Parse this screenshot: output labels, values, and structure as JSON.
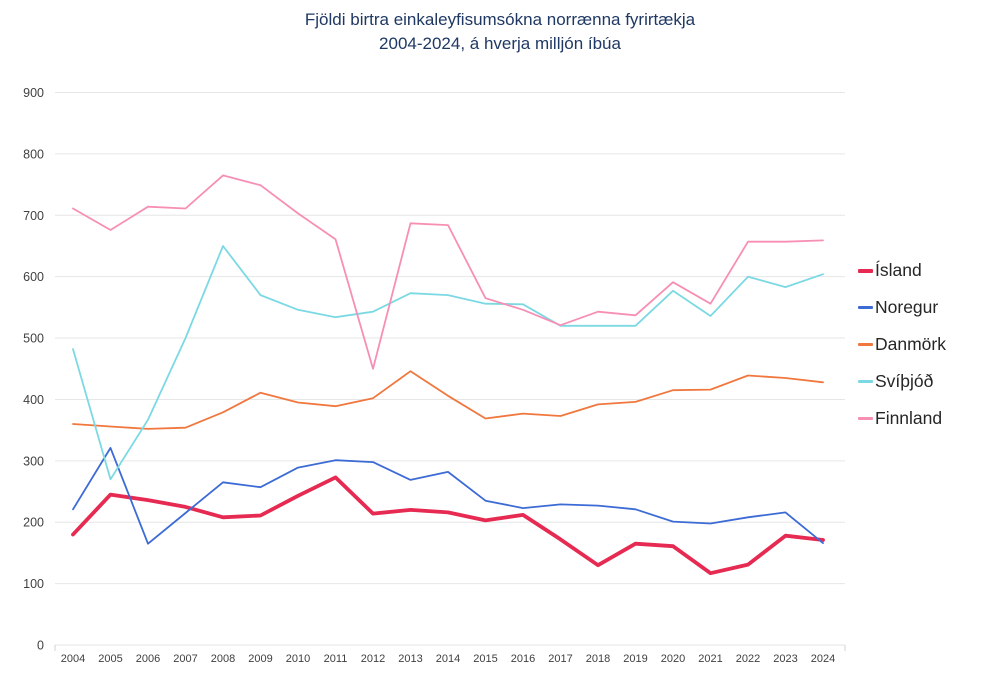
{
  "title": {
    "line1": "Fjöldi birtra einkaleyfisumsókna norrænna fyrirtækja",
    "line2": "2004-2024, á hverja milljón íbúa"
  },
  "chart_data": {
    "type": "line",
    "x": [
      2004,
      2005,
      2006,
      2007,
      2008,
      2009,
      2010,
      2011,
      2012,
      2013,
      2014,
      2015,
      2016,
      2017,
      2018,
      2019,
      2020,
      2021,
      2022,
      2023,
      2024
    ],
    "series": [
      {
        "id": "island",
        "name": "Ísland",
        "color": "#E62A52",
        "line_width": 3.8,
        "values": [
          180,
          245,
          236,
          225,
          208,
          211,
          243,
          273,
          214,
          220,
          216,
          203,
          212,
          172,
          130,
          165,
          161,
          117,
          131,
          178,
          171
        ]
      },
      {
        "id": "noregur",
        "name": "Noregur",
        "color": "#3D6BD5",
        "line_width": 1.8,
        "values": [
          221,
          321,
          165,
          215,
          265,
          257,
          289,
          301,
          298,
          269,
          282,
          235,
          223,
          229,
          227,
          221,
          201,
          198,
          208,
          216,
          166
        ]
      },
      {
        "id": "danmork",
        "name": "Danmörk",
        "color": "#F0773E",
        "line_width": 1.8,
        "values": [
          360,
          356,
          352,
          354,
          379,
          411,
          395,
          389,
          402,
          446,
          406,
          369,
          377,
          373,
          392,
          396,
          415,
          416,
          439,
          435,
          428
        ]
      },
      {
        "id": "svithjod",
        "name": "Svíþjóð",
        "color": "#7CD9E4",
        "line_width": 1.8,
        "values": [
          482,
          270,
          367,
          500,
          650,
          570,
          546,
          534,
          543,
          573,
          570,
          556,
          555,
          520,
          520,
          520,
          577,
          536,
          600,
          583,
          604
        ]
      },
      {
        "id": "finnland",
        "name": "Finnland",
        "color": "#F78FB5",
        "line_width": 1.8,
        "values": [
          711,
          676,
          714,
          711,
          765,
          749,
          703,
          661,
          450,
          687,
          684,
          565,
          546,
          521,
          543,
          537,
          591,
          556,
          657,
          657,
          659
        ]
      }
    ],
    "ylim": [
      0,
      900
    ],
    "ytick_step": 100,
    "ytick_labels": [
      "0",
      "100",
      "200",
      "300",
      "400",
      "500",
      "600",
      "700",
      "800",
      "900"
    ],
    "xtick_labels": [
      "2004",
      "2005",
      "2006",
      "2007",
      "2008",
      "2009",
      "2010",
      "2011",
      "2012",
      "2013",
      "2014",
      "2015",
      "2016",
      "2017",
      "2018",
      "2019",
      "2020",
      "2021",
      "2022",
      "2023",
      "2024"
    ],
    "grid": "horizontal",
    "legend_position": "right",
    "gridline_color": "#E6E6E6",
    "tick_color": "#D0D0D0",
    "axis_label_color": "#404040",
    "title_color": "#1F3864"
  }
}
